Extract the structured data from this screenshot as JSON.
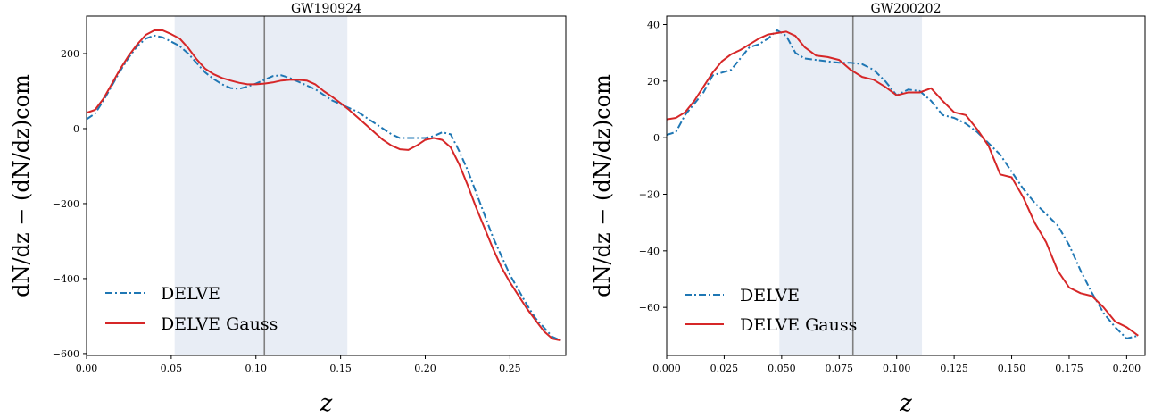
{
  "chart_data": [
    {
      "type": "line",
      "title": "GW190924",
      "xlabel": "z",
      "ylabel": "dN/dz − (dN/dz)com",
      "xlim": [
        0.0,
        0.283
      ],
      "ylim": [
        -605,
        300
      ],
      "xticks": [
        0.0,
        0.05,
        0.1,
        0.15,
        0.2,
        0.25
      ],
      "xtick_labels": [
        "0.00",
        "0.05",
        "0.10",
        "0.15",
        "0.20",
        "0.25"
      ],
      "yticks": [
        200,
        0,
        -200,
        -400,
        -600
      ],
      "ytick_labels": [
        "200",
        "0",
        "−200",
        "−400",
        "−600"
      ],
      "shaded_band": [
        0.052,
        0.154
      ],
      "vertical_line": 0.105,
      "legend_position": "lower-left",
      "grid": false,
      "series": [
        {
          "name": "DELVE",
          "style": "dashdot",
          "color": "#1f77b4",
          "x": [
            0.0,
            0.005,
            0.01,
            0.015,
            0.02,
            0.025,
            0.03,
            0.035,
            0.04,
            0.045,
            0.05,
            0.055,
            0.06,
            0.065,
            0.07,
            0.075,
            0.08,
            0.085,
            0.09,
            0.095,
            0.1,
            0.105,
            0.11,
            0.115,
            0.12,
            0.125,
            0.13,
            0.135,
            0.14,
            0.145,
            0.15,
            0.155,
            0.16,
            0.165,
            0.17,
            0.175,
            0.18,
            0.185,
            0.19,
            0.195,
            0.2,
            0.205,
            0.21,
            0.215,
            0.22,
            0.225,
            0.23,
            0.235,
            0.24,
            0.245,
            0.25,
            0.255,
            0.26,
            0.265,
            0.27,
            0.275,
            0.28
          ],
          "y": [
            25,
            40,
            75,
            115,
            155,
            190,
            220,
            240,
            248,
            243,
            232,
            220,
            200,
            175,
            150,
            132,
            118,
            108,
            106,
            112,
            120,
            130,
            140,
            142,
            135,
            125,
            115,
            105,
            90,
            75,
            65,
            55,
            45,
            30,
            15,
            0,
            -15,
            -25,
            -25,
            -25,
            -25,
            -20,
            -10,
            -15,
            -60,
            -110,
            -170,
            -230,
            -290,
            -340,
            -390,
            -430,
            -470,
            -505,
            -530,
            -555,
            -565
          ]
        },
        {
          "name": "DELVE Gauss",
          "style": "solid",
          "color": "#d62728",
          "x": [
            0.0,
            0.005,
            0.01,
            0.015,
            0.02,
            0.025,
            0.03,
            0.035,
            0.04,
            0.045,
            0.05,
            0.055,
            0.06,
            0.065,
            0.07,
            0.075,
            0.08,
            0.085,
            0.09,
            0.095,
            0.1,
            0.105,
            0.11,
            0.115,
            0.12,
            0.125,
            0.13,
            0.135,
            0.14,
            0.145,
            0.15,
            0.155,
            0.16,
            0.165,
            0.17,
            0.175,
            0.18,
            0.185,
            0.19,
            0.195,
            0.2,
            0.205,
            0.21,
            0.215,
            0.22,
            0.225,
            0.23,
            0.235,
            0.24,
            0.245,
            0.25,
            0.255,
            0.26,
            0.265,
            0.27,
            0.275,
            0.28
          ],
          "y": [
            42,
            50,
            80,
            120,
            160,
            195,
            225,
            250,
            262,
            262,
            252,
            240,
            215,
            185,
            160,
            145,
            135,
            128,
            122,
            118,
            118,
            120,
            123,
            128,
            130,
            130,
            128,
            118,
            100,
            85,
            68,
            50,
            30,
            10,
            -10,
            -30,
            -45,
            -55,
            -57,
            -45,
            -30,
            -25,
            -30,
            -50,
            -95,
            -150,
            -210,
            -265,
            -320,
            -370,
            -410,
            -445,
            -480,
            -510,
            -540,
            -560,
            -565
          ]
        }
      ]
    },
    {
      "type": "line",
      "title": "GW200202",
      "xlabel": "z",
      "ylabel": "dN/dz − (dN/dz)com",
      "xlim": [
        0.0,
        0.208
      ],
      "ylim": [
        -77,
        43
      ],
      "xticks": [
        0.0,
        0.025,
        0.05,
        0.075,
        0.1,
        0.125,
        0.15,
        0.175,
        0.2
      ],
      "xtick_labels": [
        "0.000",
        "0.025",
        "0.050",
        "0.075",
        "0.100",
        "0.125",
        "0.150",
        "0.175",
        "0.200"
      ],
      "yticks": [
        40,
        20,
        0,
        -20,
        -40,
        -60
      ],
      "ytick_labels": [
        "40",
        "20",
        "0",
        "−20",
        "−40",
        "−60"
      ],
      "shaded_band": [
        0.049,
        0.111
      ],
      "vertical_line": 0.081,
      "legend_position": "lower-left",
      "grid": false,
      "series": [
        {
          "name": "DELVE",
          "style": "dashdot",
          "color": "#1f77b4",
          "x": [
            0.0,
            0.004,
            0.008,
            0.012,
            0.016,
            0.02,
            0.024,
            0.028,
            0.032,
            0.036,
            0.04,
            0.044,
            0.048,
            0.052,
            0.056,
            0.06,
            0.065,
            0.07,
            0.075,
            0.08,
            0.085,
            0.09,
            0.095,
            0.1,
            0.105,
            0.11,
            0.115,
            0.12,
            0.125,
            0.13,
            0.135,
            0.14,
            0.145,
            0.15,
            0.155,
            0.16,
            0.165,
            0.17,
            0.175,
            0.18,
            0.185,
            0.19,
            0.195,
            0.2,
            0.205
          ],
          "y": [
            1,
            2,
            8,
            12,
            16,
            22,
            23,
            24,
            28,
            32,
            33,
            35,
            38,
            36,
            30,
            28,
            27.5,
            27,
            26.5,
            26.5,
            26,
            24,
            20,
            15,
            17,
            16.5,
            13,
            8,
            7,
            5,
            2,
            -2,
            -6,
            -12,
            -18,
            -23,
            -27,
            -31,
            -38,
            -47,
            -55,
            -62,
            -67,
            -71,
            -70
          ]
        },
        {
          "name": "DELVE Gauss",
          "style": "solid",
          "color": "#d62728",
          "x": [
            0.0,
            0.004,
            0.008,
            0.012,
            0.016,
            0.02,
            0.024,
            0.028,
            0.032,
            0.036,
            0.04,
            0.044,
            0.048,
            0.052,
            0.056,
            0.06,
            0.065,
            0.07,
            0.075,
            0.08,
            0.085,
            0.09,
            0.095,
            0.1,
            0.105,
            0.11,
            0.115,
            0.12,
            0.125,
            0.13,
            0.135,
            0.14,
            0.145,
            0.15,
            0.155,
            0.16,
            0.165,
            0.17,
            0.175,
            0.18,
            0.185,
            0.19,
            0.195,
            0.2,
            0.205
          ],
          "y": [
            6.5,
            7,
            9,
            13,
            18,
            23,
            27,
            29.5,
            31,
            33,
            35,
            36.5,
            37,
            37.5,
            36,
            32,
            29,
            28.5,
            27.5,
            24,
            21.5,
            20.5,
            18,
            15,
            16,
            16,
            17.5,
            13,
            9,
            8,
            3,
            -3,
            -13,
            -14,
            -21,
            -30,
            -37,
            -47,
            -53,
            -55,
            -56,
            -60,
            -65,
            -67,
            -70
          ]
        }
      ]
    }
  ]
}
